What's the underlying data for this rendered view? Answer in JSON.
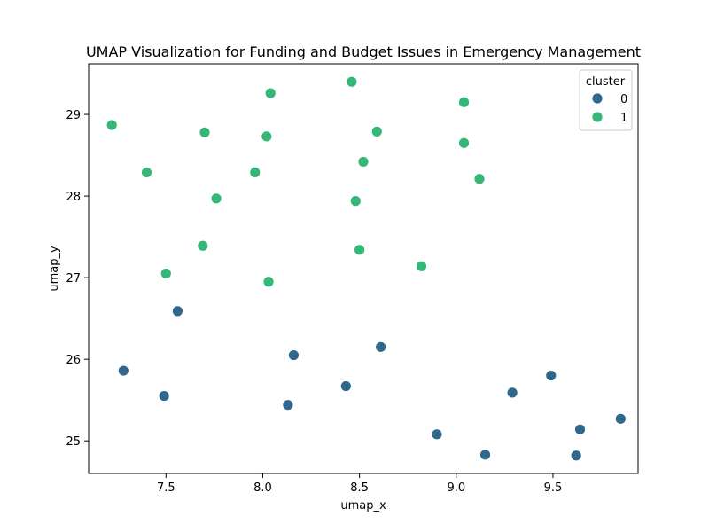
{
  "chart_data": {
    "type": "scatter",
    "title": "UMAP Visualization for Funding and Budget Issues in Emergency Management",
    "xlabel": "umap_x",
    "ylabel": "umap_y",
    "xlim": [
      7.1,
      9.94
    ],
    "ylim": [
      24.6,
      29.62
    ],
    "xticks": [
      "7.5",
      "8.0",
      "8.5",
      "9.0",
      "9.5"
    ],
    "yticks": [
      "25",
      "26",
      "27",
      "28",
      "29"
    ],
    "grid": false,
    "legend": {
      "title": "cluster",
      "placement": "top-right",
      "entries": [
        "0",
        "1"
      ]
    },
    "series": [
      {
        "name": "0",
        "color": "#30678d",
        "points": [
          [
            7.56,
            26.59
          ],
          [
            7.28,
            25.86
          ],
          [
            7.49,
            25.55
          ],
          [
            8.16,
            26.05
          ],
          [
            8.13,
            25.44
          ],
          [
            8.43,
            25.67
          ],
          [
            8.61,
            26.15
          ],
          [
            8.9,
            25.08
          ],
          [
            9.15,
            24.83
          ],
          [
            9.29,
            25.59
          ],
          [
            9.49,
            25.8
          ],
          [
            9.64,
            25.14
          ],
          [
            9.62,
            24.82
          ],
          [
            9.85,
            25.27
          ]
        ]
      },
      {
        "name": "1",
        "color": "#35b778",
        "points": [
          [
            7.22,
            28.87
          ],
          [
            7.4,
            28.29
          ],
          [
            7.5,
            27.05
          ],
          [
            7.69,
            27.39
          ],
          [
            7.7,
            28.78
          ],
          [
            7.76,
            27.97
          ],
          [
            7.96,
            28.29
          ],
          [
            8.02,
            28.73
          ],
          [
            8.04,
            29.26
          ],
          [
            8.03,
            26.95
          ],
          [
            8.46,
            29.4
          ],
          [
            8.52,
            28.42
          ],
          [
            8.59,
            28.79
          ],
          [
            8.48,
            27.94
          ],
          [
            8.5,
            27.34
          ],
          [
            8.82,
            27.14
          ],
          [
            9.04,
            29.15
          ],
          [
            9.04,
            28.65
          ],
          [
            9.12,
            28.21
          ]
        ]
      }
    ]
  }
}
